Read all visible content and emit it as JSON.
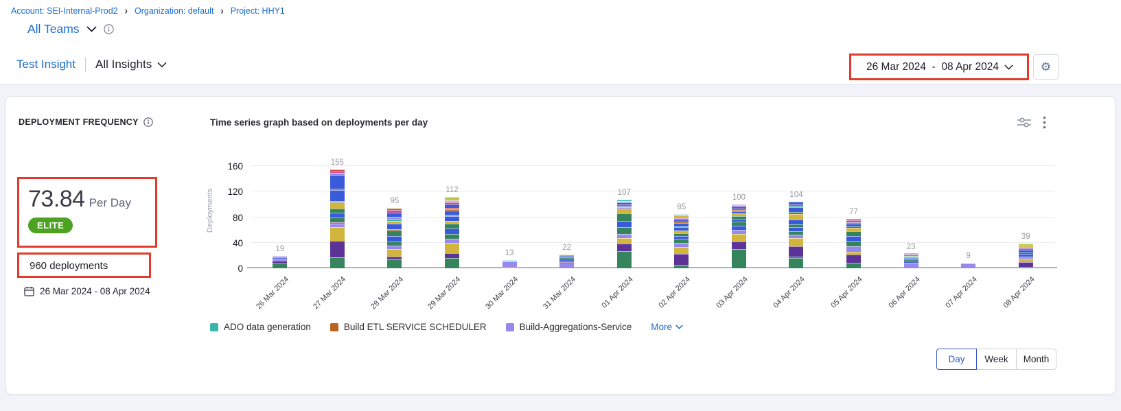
{
  "breadcrumb": {
    "items": [
      "Account: SEI-Internal-Prod2",
      "Organization: default",
      "Project: HHY1"
    ]
  },
  "team_selector": {
    "label": "All Teams"
  },
  "insight_nav": {
    "insight": "Test Insight",
    "scope": "All Insights"
  },
  "date_range": {
    "label": "26 Mar 2024  -  08 Apr 2024"
  },
  "colors": {
    "accent_blue": "#1a6cd1",
    "badge_green": "#4DA321",
    "annotation_red": "#E23A2C"
  },
  "widget": {
    "title": "DEPLOYMENT FREQUENCY",
    "metric_value": "73.84",
    "metric_unit": "Per Day",
    "badge": "ELITE",
    "total": "960 deployments",
    "period": "26 Mar 2024 - 08 Apr 2024"
  },
  "chart_data": {
    "type": "bar",
    "stacked": true,
    "title": "Time series graph based on deployments per day",
    "xlabel": "",
    "ylabel": "Deployments",
    "ylim": [
      0,
      160
    ],
    "yticks": [
      0,
      40,
      80,
      120,
      160
    ],
    "grid": true,
    "legend_position": "bottom",
    "categories": [
      "26 Mar 2024",
      "27 Mar 2024",
      "28 Mar 2024",
      "29 Mar 2024",
      "30 Mar 2024",
      "31 Mar 2024",
      "01 Apr 2024",
      "02 Apr 2024",
      "03 Apr 2024",
      "04 Apr 2024",
      "05 Apr 2024",
      "06 Apr 2024",
      "07 Apr 2024",
      "08 Apr 2024"
    ],
    "totals": [
      19,
      155,
      95,
      112,
      13,
      22,
      107,
      85,
      100,
      104,
      77,
      23,
      9,
      39
    ],
    "palette": {
      "green": "#35845E",
      "purple": "#5D3397",
      "yellow": "#D2B53D",
      "lavender": "#9789EB",
      "blue": "#3A5BD9",
      "orange": "#B9651F",
      "teal": "#3AB5AC",
      "pink": "#C0509A",
      "red": "#CE4A44",
      "lightblue": "#9AD9F1",
      "slate": "#7D88CF",
      "lightgreen": "#B9C94E",
      "lilac": "#D4A6DC"
    },
    "bars": [
      [
        [
          "green",
          8
        ],
        [
          "purple",
          4
        ],
        [
          "lavender",
          3
        ],
        [
          "blue",
          2
        ],
        [
          "pink",
          1
        ],
        [
          "lavender",
          1
        ]
      ],
      [
        [
          "green",
          17
        ],
        [
          "purple",
          26
        ],
        [
          "yellow",
          21
        ],
        [
          "lavender",
          6
        ],
        [
          "pink",
          2
        ],
        [
          "green",
          7
        ],
        [
          "blue",
          8
        ],
        [
          "green",
          7
        ],
        [
          "yellow",
          9
        ],
        [
          "slate",
          2
        ],
        [
          "blue",
          17
        ],
        [
          "orange",
          3
        ],
        [
          "blue",
          21
        ],
        [
          "lavender",
          3
        ],
        [
          "pink",
          3
        ],
        [
          "red",
          3
        ]
      ],
      [
        [
          "green",
          14
        ],
        [
          "purple",
          4
        ],
        [
          "yellow",
          12
        ],
        [
          "lavender",
          5
        ],
        [
          "green",
          7
        ],
        [
          "blue",
          8
        ],
        [
          "green",
          9
        ],
        [
          "orange",
          2
        ],
        [
          "blue",
          9
        ],
        [
          "yellow",
          4
        ],
        [
          "teal",
          3
        ],
        [
          "lavender",
          4
        ],
        [
          "blue",
          6
        ],
        [
          "pink",
          4
        ],
        [
          "red",
          2
        ],
        [
          "lightgreen",
          2
        ]
      ],
      [
        [
          "green",
          16
        ],
        [
          "purple",
          8
        ],
        [
          "yellow",
          16
        ],
        [
          "lavender",
          6
        ],
        [
          "green",
          8
        ],
        [
          "blue",
          8
        ],
        [
          "green",
          8
        ],
        [
          "yellow",
          4
        ],
        [
          "blue",
          8
        ],
        [
          "teal",
          2
        ],
        [
          "blue",
          6
        ],
        [
          "orange",
          2
        ],
        [
          "red",
          3
        ],
        [
          "blue",
          5
        ],
        [
          "pink",
          3
        ],
        [
          "lilac",
          4
        ],
        [
          "lightgreen",
          5
        ]
      ],
      [
        [
          "yellow",
          1
        ],
        [
          "lavender",
          10
        ],
        [
          "lightblue",
          2
        ]
      ],
      [
        [
          "lavender",
          8
        ],
        [
          "purple",
          2
        ],
        [
          "green",
          2
        ],
        [
          "blue",
          3
        ],
        [
          "green",
          2
        ],
        [
          "blue",
          2
        ],
        [
          "yellow",
          3
        ]
      ],
      [
        [
          "green",
          27
        ],
        [
          "purple",
          12
        ],
        [
          "yellow",
          8
        ],
        [
          "lavender",
          7
        ],
        [
          "green",
          10
        ],
        [
          "blue",
          10
        ],
        [
          "green",
          12
        ],
        [
          "yellow",
          8
        ],
        [
          "lavender",
          2
        ],
        [
          "slate",
          2
        ],
        [
          "pink",
          2
        ],
        [
          "blue",
          3
        ],
        [
          "lightblue",
          2
        ],
        [
          "teal",
          2
        ]
      ],
      [
        [
          "green",
          5
        ],
        [
          "purple",
          18
        ],
        [
          "yellow",
          10
        ],
        [
          "lavender",
          7
        ],
        [
          "green",
          6
        ],
        [
          "blue",
          5
        ],
        [
          "green",
          4
        ],
        [
          "yellow",
          4
        ],
        [
          "blue",
          5
        ],
        [
          "teal",
          2
        ],
        [
          "blue",
          5
        ],
        [
          "orange",
          2
        ],
        [
          "blue",
          3
        ],
        [
          "pink",
          2
        ],
        [
          "lavender",
          3
        ],
        [
          "yellow",
          2
        ],
        [
          "lightblue",
          2
        ]
      ],
      [
        [
          "green",
          30
        ],
        [
          "purple",
          12
        ],
        [
          "yellow",
          12
        ],
        [
          "lavender",
          6
        ],
        [
          "blue",
          7
        ],
        [
          "green",
          6
        ],
        [
          "blue",
          4
        ],
        [
          "green",
          5
        ],
        [
          "yellow",
          4
        ],
        [
          "blue",
          3
        ],
        [
          "orange",
          2
        ],
        [
          "red",
          2
        ],
        [
          "blue",
          4
        ],
        [
          "lavender",
          2
        ],
        [
          "pink",
          1
        ]
      ],
      [
        [
          "green",
          16
        ],
        [
          "blue",
          2
        ],
        [
          "purple",
          16
        ],
        [
          "yellow",
          13
        ],
        [
          "lavender",
          6
        ],
        [
          "green",
          5
        ],
        [
          "blue",
          6
        ],
        [
          "green",
          5
        ],
        [
          "blue",
          7
        ],
        [
          "yellow",
          9
        ],
        [
          "green",
          3
        ],
        [
          "blue",
          8
        ],
        [
          "teal",
          2
        ],
        [
          "pink",
          2
        ],
        [
          "blue",
          4
        ]
      ],
      [
        [
          "green",
          9
        ],
        [
          "purple",
          13
        ],
        [
          "yellow",
          4
        ],
        [
          "lavender",
          8
        ],
        [
          "green",
          9
        ],
        [
          "blue",
          8
        ],
        [
          "green",
          7
        ],
        [
          "yellow",
          5
        ],
        [
          "green",
          3
        ],
        [
          "blue",
          4
        ],
        [
          "slate",
          2
        ],
        [
          "pink",
          3
        ],
        [
          "red",
          2
        ]
      ],
      [
        [
          "lavender",
          9
        ],
        [
          "blue",
          3
        ],
        [
          "green",
          2
        ],
        [
          "blue",
          2
        ],
        [
          "yellow",
          2
        ],
        [
          "teal",
          1
        ],
        [
          "slate",
          2
        ],
        [
          "pink",
          1
        ],
        [
          "orange",
          1
        ]
      ],
      [
        [
          "lavender",
          8
        ],
        [
          "lightblue",
          1
        ]
      ],
      [
        [
          "green",
          2
        ],
        [
          "purple",
          8
        ],
        [
          "yellow",
          5
        ],
        [
          "lavender",
          3
        ],
        [
          "blue",
          5
        ],
        [
          "green",
          2
        ],
        [
          "blue",
          4
        ],
        [
          "pink",
          2
        ],
        [
          "slate",
          2
        ],
        [
          "yellow",
          3
        ],
        [
          "lightgreen",
          3
        ]
      ]
    ],
    "legend": [
      {
        "label": "ADO data generation",
        "color": "#3AB5AC"
      },
      {
        "label": "Build ETL SERVICE SCHEDULER",
        "color": "#B9651F"
      },
      {
        "label": "Build-Aggregations-Service",
        "color": "#9789EB"
      }
    ],
    "legend_more": "More"
  },
  "granularity": {
    "options": [
      "Day",
      "Week",
      "Month"
    ],
    "selected": "Day"
  }
}
